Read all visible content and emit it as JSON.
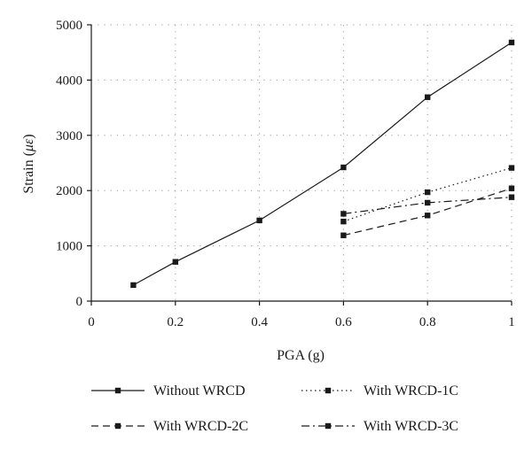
{
  "chart_data": {
    "type": "line",
    "xlabel": "PGA (g)",
    "ylabel_prefix": "Strain (",
    "ylabel_unit": "με",
    "ylabel_suffix": ")",
    "xlim": [
      0,
      1
    ],
    "ylim": [
      0,
      5000
    ],
    "xticks": [
      "0",
      "0.2",
      "0.4",
      "0.6",
      "0.8",
      "1"
    ],
    "yticks": [
      "0",
      "1000",
      "2000",
      "3000",
      "4000",
      "5000"
    ],
    "grid": true,
    "legend_position": "bottom",
    "series": [
      {
        "name": "Without WRCD",
        "style": "solid",
        "x": [
          0.1,
          0.2,
          0.4,
          0.6,
          0.8,
          1.0
        ],
        "y": [
          290,
          710,
          1460,
          2420,
          3690,
          4680
        ]
      },
      {
        "name": "With WRCD-1C",
        "style": "dotted",
        "x": [
          0.6,
          0.8,
          1.0
        ],
        "y": [
          1440,
          1970,
          2410
        ]
      },
      {
        "name": "With WRCD-2C",
        "style": "dashed",
        "x": [
          0.6,
          0.8,
          1.0
        ],
        "y": [
          1190,
          1550,
          2040
        ]
      },
      {
        "name": "With WRCD-3C",
        "style": "dashdot",
        "x": [
          0.6,
          0.8,
          1.0
        ],
        "y": [
          1580,
          1780,
          1880
        ]
      }
    ]
  }
}
